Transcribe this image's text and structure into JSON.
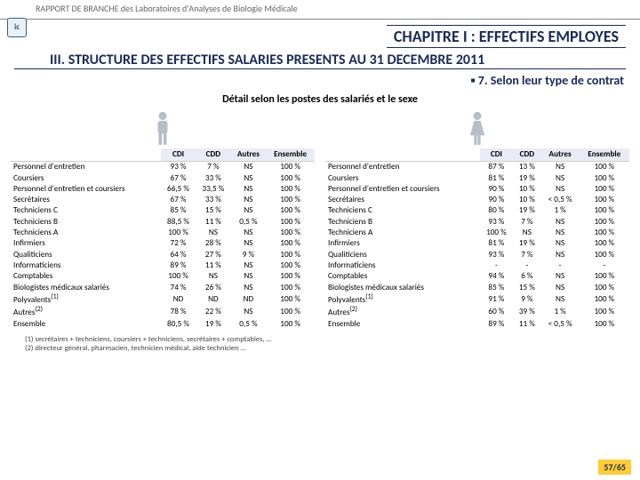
{
  "header": "RAPPORT DE BRANCHE des Laboratoires d'Analyses de Biologie Médicale",
  "chapter": "CHAPITRE I : EFFECTIFS EMPLOYES",
  "section": "III. STRUCTURE DES EFFECTIFS SALARIES PRESENTS AU 31 DECEMBRE 2011",
  "subsection": "7. Selon leur type de contrat",
  "detail_title": "Détail selon les postes des salariés et le sexe",
  "columns": [
    "CDI",
    "CDD",
    "Autres",
    "Ensemble"
  ],
  "rows_labels": [
    "Personnel d'entretien",
    "Coursiers",
    "Personnel d'entretien et coursiers",
    "Secrétaires",
    "Techniciens C",
    "Techniciens B",
    "Techniciens A",
    "Infirmiers",
    "Qualiticiens",
    "Informaticiens",
    "Comptables",
    "Biologistes médicaux salariés",
    "Polyvalents(1)",
    "Autres(2)",
    "Ensemble"
  ],
  "male": [
    [
      "93 %",
      "7 %",
      "NS",
      "100 %"
    ],
    [
      "67 %",
      "33 %",
      "NS",
      "100 %"
    ],
    [
      "66,5 %",
      "33,5 %",
      "NS",
      "100 %"
    ],
    [
      "67 %",
      "33 %",
      "NS",
      "100 %"
    ],
    [
      "85 %",
      "15 %",
      "NS",
      "100 %"
    ],
    [
      "88,5 %",
      "11 %",
      "0,5 %",
      "100 %"
    ],
    [
      "100 %",
      "NS",
      "NS",
      "100 %"
    ],
    [
      "72 %",
      "28 %",
      "NS",
      "100 %"
    ],
    [
      "64 %",
      "27 %",
      "9 %",
      "100 %"
    ],
    [
      "89 %",
      "11 %",
      "NS",
      "100 %"
    ],
    [
      "100 %",
      "NS",
      "NS",
      "100 %"
    ],
    [
      "74 %",
      "26 %",
      "NS",
      "100 %"
    ],
    [
      "ND",
      "ND",
      "ND",
      "100 %"
    ],
    [
      "78 %",
      "22 %",
      "NS",
      "100 %"
    ],
    [
      "80,5 %",
      "19 %",
      "0,5 %",
      "100 %"
    ]
  ],
  "female": [
    [
      "87 %",
      "13 %",
      "NS",
      "100 %"
    ],
    [
      "81 %",
      "19 %",
      "NS",
      "100 %"
    ],
    [
      "90 %",
      "10 %",
      "NS",
      "100 %"
    ],
    [
      "90 %",
      "10 %",
      "< 0,5 %",
      "100 %"
    ],
    [
      "80 %",
      "19 %",
      "1 %",
      "100 %"
    ],
    [
      "93 %",
      "7 %",
      "NS",
      "100 %"
    ],
    [
      "100 %",
      "NS",
      "NS",
      "100 %"
    ],
    [
      "81 %",
      "19 %",
      "NS",
      "100 %"
    ],
    [
      "93 %",
      "7 %",
      "NS",
      "100 %"
    ],
    [
      "-",
      "-",
      "-",
      "-"
    ],
    [
      "94 %",
      "6 %",
      "NS",
      "100 %"
    ],
    [
      "85 %",
      "15 %",
      "NS",
      "100 %"
    ],
    [
      "91 %",
      "9 %",
      "NS",
      "100 %"
    ],
    [
      "60 %",
      "39 %",
      "1 %",
      "100 %"
    ],
    [
      "89 %",
      "11 %",
      "< 0,5 %",
      "100 %"
    ]
  ],
  "footnote1": "(1) secrétaires + techniciens, coursiers + techniciens, secrétaires + comptables, …",
  "footnote2": "(2) directeur général, pharmacien, technicien médical, aide technicien …",
  "page": "57/65",
  "colors": {
    "accent": "#1a2a5a",
    "header_bg": "#e8ecf5",
    "male_icon": "#b8bec8",
    "female_icon": "#b8bec8",
    "pagenum_bg": "#ffcc33"
  }
}
